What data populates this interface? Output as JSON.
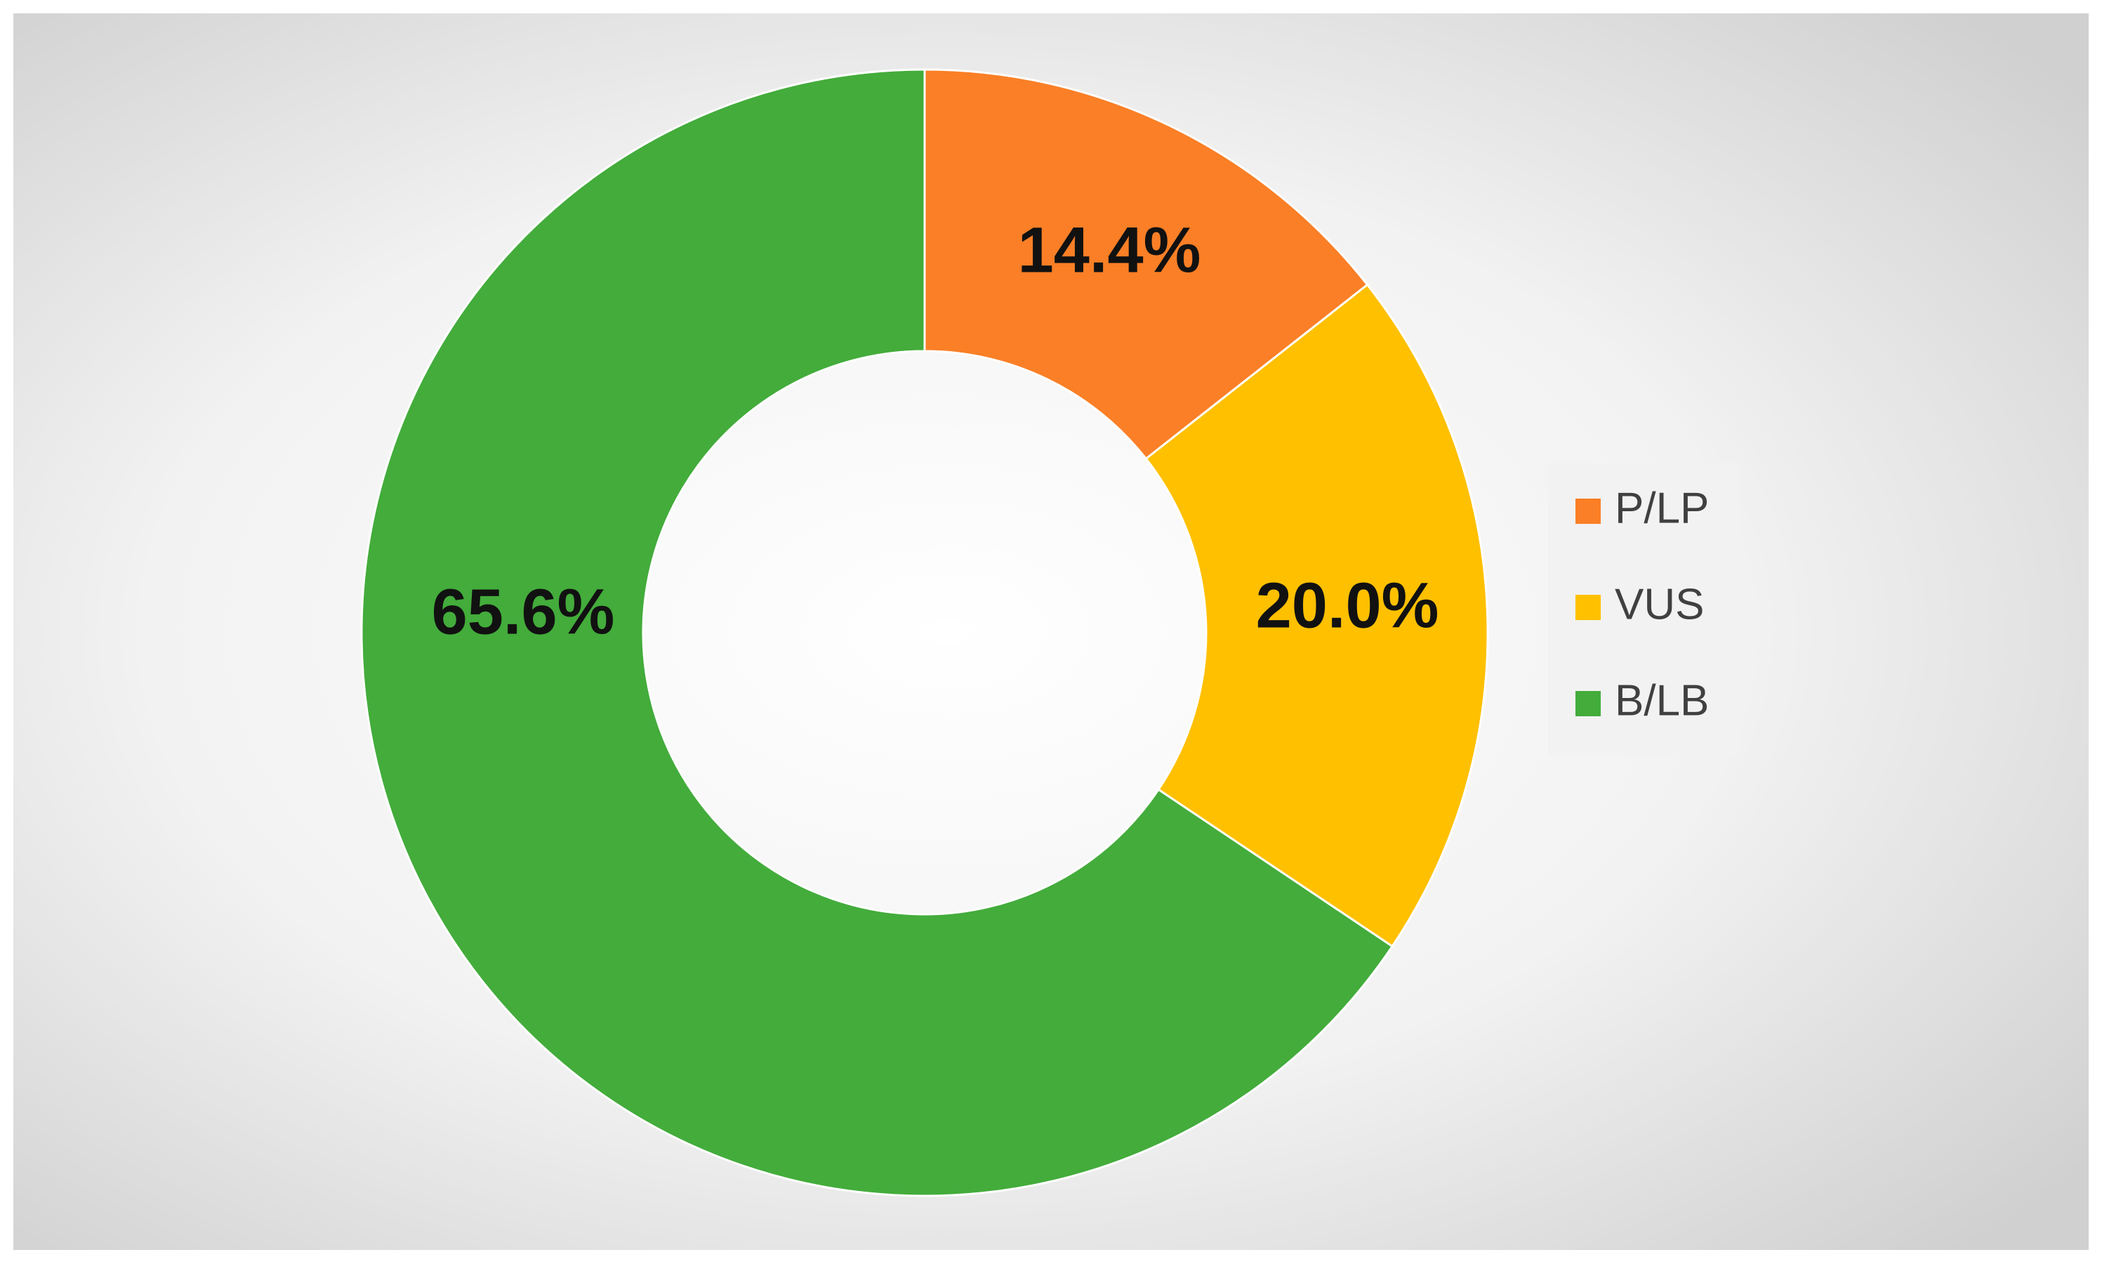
{
  "chart_data": {
    "type": "donut",
    "categories": [
      "P/LP",
      "VUS",
      "B/LB"
    ],
    "values": [
      14.4,
      20.0,
      65.6
    ],
    "value_labels": [
      "14.4%",
      "20.0%",
      "65.6%"
    ],
    "colors": [
      "#fa7f26",
      "#ffc000",
      "#43ac3b"
    ],
    "legend": "right"
  }
}
